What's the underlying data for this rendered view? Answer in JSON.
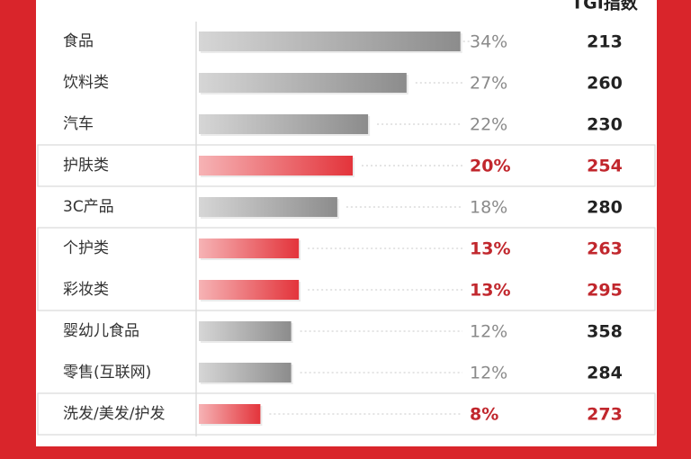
{
  "chart_data": {
    "type": "bar",
    "orientation": "horizontal",
    "tgi_header": "TGI指数",
    "categories": [
      "食品",
      "饮料类",
      "汽车",
      "护肤类",
      "3C产品",
      "个护类",
      "彩妆类",
      "婴幼儿食品",
      "零售(互联网)",
      "洗发/美发/护发"
    ],
    "values": [
      34,
      27,
      22,
      20,
      18,
      13,
      13,
      12,
      12,
      8
    ],
    "value_labels": [
      "34%",
      "27%",
      "22%",
      "20%",
      "18%",
      "13%",
      "13%",
      "12%",
      "12%",
      "8%"
    ],
    "tgi": [
      213,
      260,
      230,
      254,
      280,
      263,
      295,
      358,
      284,
      273
    ],
    "highlighted": [
      false,
      false,
      false,
      true,
      false,
      true,
      true,
      false,
      false,
      true
    ],
    "color": "#8c8c8c",
    "highlight_color": "#e3343b"
  }
}
